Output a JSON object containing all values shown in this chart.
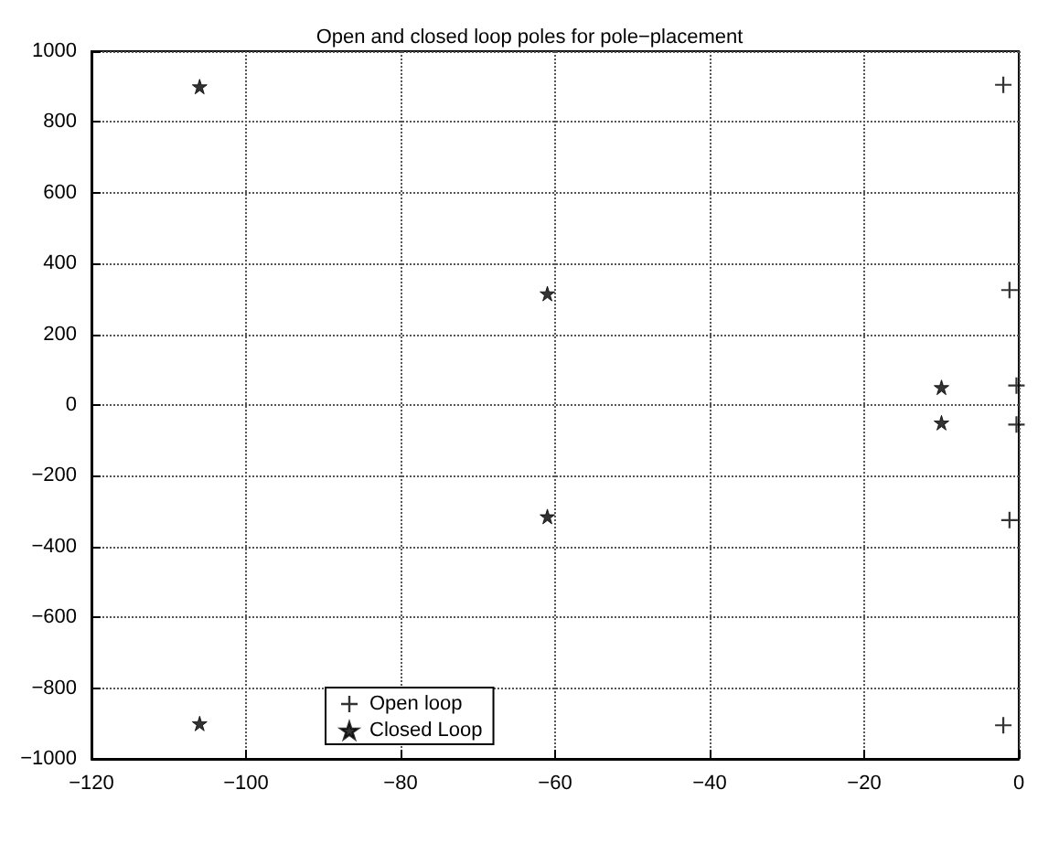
{
  "chart_data": {
    "type": "scatter",
    "title": "Open and closed loop poles for pole−placement",
    "series": [
      {
        "name": "Open loop",
        "color": "#000000",
        "marker": "cross",
        "x": [
          -2,
          -1.2,
          -0.3,
          -0.3,
          -1.2,
          -2
        ],
        "values": [
          905,
          325,
          55,
          -55,
          -325,
          -905
        ]
      },
      {
        "name": "Closed Loop",
        "color": "#000000",
        "marker": "star",
        "x": [
          -106,
          -61,
          -10,
          -10,
          -61,
          -106
        ],
        "values": [
          900,
          315,
          50,
          -50,
          -315,
          -900
        ]
      }
    ],
    "xlim": [
      -120,
      0
    ],
    "ylim": [
      -1000,
      1000
    ],
    "xticks": [
      -120,
      -100,
      -80,
      -60,
      -40,
      -20,
      0
    ],
    "yticks": [
      -1000,
      -800,
      -600,
      -400,
      -200,
      0,
      200,
      400,
      600,
      800,
      1000
    ],
    "grid": true,
    "legend": "bottom"
  }
}
